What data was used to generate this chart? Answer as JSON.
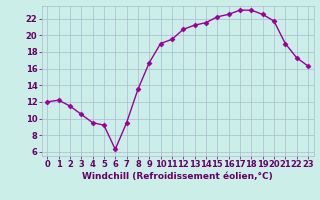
{
  "x": [
    0,
    1,
    2,
    3,
    4,
    5,
    6,
    7,
    8,
    9,
    10,
    11,
    12,
    13,
    14,
    15,
    16,
    17,
    18,
    19,
    20,
    21,
    22,
    23
  ],
  "y": [
    12.0,
    12.2,
    11.5,
    10.5,
    9.5,
    9.2,
    6.3,
    9.5,
    13.5,
    16.7,
    19.0,
    19.5,
    20.7,
    21.2,
    21.5,
    22.2,
    22.5,
    23.0,
    23.0,
    22.5,
    21.7,
    19.0,
    17.3,
    16.3
  ],
  "line_color": "#990099",
  "marker": "D",
  "marker_size": 2.5,
  "bg_color": "#cceee8",
  "grid_color": "#aabbcc",
  "xlabel": "Windchill (Refroidissement éolien,°C)",
  "xlim": [
    -0.5,
    23.5
  ],
  "ylim": [
    5.5,
    23.5
  ],
  "yticks": [
    6,
    8,
    10,
    12,
    14,
    16,
    18,
    20,
    22
  ],
  "xticks": [
    0,
    1,
    2,
    3,
    4,
    5,
    6,
    7,
    8,
    9,
    10,
    11,
    12,
    13,
    14,
    15,
    16,
    17,
    18,
    19,
    20,
    21,
    22,
    23
  ],
  "tick_color": "#660066",
  "label_color": "#660066",
  "label_fontsize": 6.5,
  "tick_fontsize": 6.0,
  "linewidth": 1.0
}
